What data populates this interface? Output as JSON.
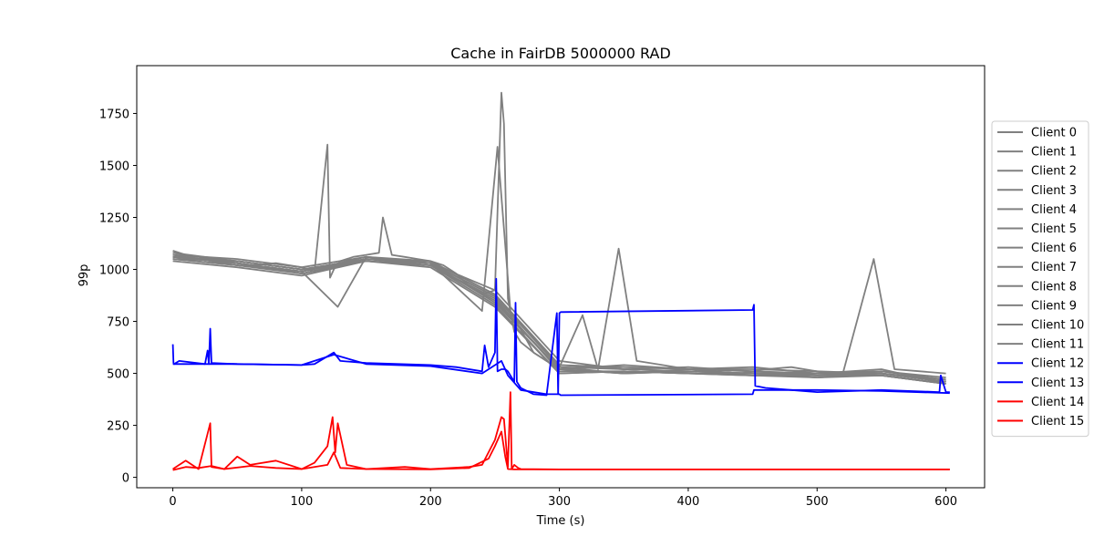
{
  "chart_data": {
    "type": "line",
    "title": "Cache in  FairDB 5000000 RAD",
    "xlabel": "Time (s)",
    "ylabel": "99p",
    "xlim": [
      -28,
      630
    ],
    "ylim": [
      -50,
      1980
    ],
    "xticks": [
      0,
      100,
      200,
      300,
      400,
      500,
      600
    ],
    "yticks": [
      0,
      250,
      500,
      750,
      1000,
      1250,
      1500,
      1750
    ],
    "grid": false,
    "legend_position": "center-right-outside",
    "colors": {
      "grey": "#808080",
      "blue": "#0000ff",
      "red": "#ff0000"
    },
    "series": [
      {
        "name": "Client 0",
        "color": "#808080",
        "x": [
          0,
          20,
          40,
          60,
          80,
          100,
          110,
          120,
          122,
          125,
          130,
          140,
          150,
          160,
          163,
          170,
          180,
          190,
          200,
          210,
          220,
          230,
          240,
          250,
          255,
          257,
          260,
          265,
          270,
          280,
          290,
          300,
          318,
          330,
          346,
          360,
          380,
          400,
          420,
          440,
          460,
          480,
          500,
          520,
          544,
          560,
          580,
          600
        ],
        "y": [
          1090,
          1050,
          1040,
          1020,
          1030,
          1010,
          990,
          1600,
          960,
          1000,
          1040,
          1060,
          1070,
          1080,
          1250,
          1070,
          1060,
          1050,
          1040,
          1020,
          980,
          920,
          880,
          900,
          1850,
          1700,
          860,
          700,
          650,
          600,
          560,
          530,
          780,
          520,
          1100,
          560,
          540,
          520,
          510,
          500,
          520,
          530,
          510,
          500,
          1050,
          520,
          510,
          500
        ]
      },
      {
        "name": "Client 1",
        "color": "#808080",
        "x": [
          0,
          50,
          100,
          128,
          150,
          200,
          240,
          252,
          262,
          280,
          300,
          350,
          400,
          450,
          500,
          550,
          600
        ],
        "y": [
          1060,
          1030,
          990,
          820,
          1060,
          1030,
          800,
          1590,
          800,
          600,
          520,
          540,
          520,
          530,
          500,
          520,
          450
        ]
      },
      {
        "name": "Client 2",
        "color": "#808080",
        "x": [
          0,
          50,
          100,
          150,
          200,
          250,
          300,
          350,
          400,
          450,
          500,
          550,
          600
        ],
        "y": [
          1080,
          1040,
          1000,
          1050,
          1030,
          900,
          560,
          520,
          530,
          510,
          500,
          510,
          480
        ]
      },
      {
        "name": "Client 3",
        "color": "#808080",
        "x": [
          0,
          50,
          100,
          150,
          200,
          250,
          300,
          350,
          400,
          450,
          500,
          550,
          600
        ],
        "y": [
          1070,
          1050,
          1010,
          1060,
          1040,
          880,
          540,
          530,
          520,
          520,
          510,
          500,
          470
        ]
      },
      {
        "name": "Client 4",
        "color": "#808080",
        "x": [
          0,
          50,
          100,
          150,
          200,
          250,
          300,
          350,
          400,
          450,
          500,
          550,
          600
        ],
        "y": [
          1050,
          1020,
          980,
          1050,
          1020,
          850,
          520,
          500,
          510,
          500,
          490,
          500,
          460
        ]
      },
      {
        "name": "Client 5",
        "color": "#808080",
        "x": [
          0,
          50,
          100,
          150,
          200,
          250,
          300,
          350,
          400,
          450,
          500,
          550,
          600
        ],
        "y": [
          1040,
          1010,
          970,
          1040,
          1010,
          820,
          500,
          510,
          500,
          490,
          480,
          490,
          450
        ]
      },
      {
        "name": "Client 6",
        "color": "#808080",
        "x": [
          0,
          50,
          100,
          150,
          200,
          250,
          300,
          350,
          400,
          450,
          500,
          550,
          600
        ],
        "y": [
          1060,
          1030,
          990,
          1050,
          1030,
          870,
          530,
          520,
          510,
          500,
          500,
          500,
          460
        ]
      },
      {
        "name": "Client 7",
        "color": "#808080",
        "x": [
          0,
          50,
          100,
          150,
          200,
          250,
          300,
          350,
          400,
          450,
          500,
          550,
          600
        ],
        "y": [
          1050,
          1040,
          1000,
          1040,
          1020,
          860,
          510,
          510,
          500,
          500,
          490,
          490,
          450
        ]
      },
      {
        "name": "Client 8",
        "color": "#808080",
        "x": [
          0,
          50,
          100,
          150,
          200,
          250,
          300,
          350,
          400,
          450,
          500,
          550,
          600
        ],
        "y": [
          1070,
          1020,
          990,
          1060,
          1030,
          840,
          520,
          500,
          520,
          510,
          490,
          500,
          460
        ]
      },
      {
        "name": "Client 9",
        "color": "#808080",
        "x": [
          0,
          50,
          100,
          150,
          200,
          250,
          300,
          350,
          400,
          450,
          500,
          550,
          600
        ],
        "y": [
          1060,
          1040,
          1000,
          1050,
          1040,
          880,
          540,
          520,
          510,
          500,
          500,
          510,
          470
        ]
      },
      {
        "name": "Client 10",
        "color": "#808080",
        "x": [
          0,
          50,
          100,
          150,
          200,
          250,
          300,
          350,
          400,
          450,
          500,
          550,
          600
        ],
        "y": [
          1080,
          1030,
          980,
          1040,
          1020,
          830,
          500,
          510,
          500,
          490,
          490,
          490,
          450
        ]
      },
      {
        "name": "Client 11",
        "color": "#808080",
        "x": [
          0,
          50,
          100,
          150,
          200,
          250,
          300,
          350,
          400,
          450,
          500,
          550,
          600
        ],
        "y": [
          1050,
          1020,
          990,
          1050,
          1030,
          870,
          530,
          500,
          510,
          500,
          480,
          500,
          460
        ]
      },
      {
        "name": "Client 12",
        "color": "#0000ff",
        "x": [
          0,
          0.5,
          1,
          5,
          25,
          27,
          28,
          29,
          30,
          50,
          100,
          110,
          125,
          130,
          150,
          200,
          220,
          240,
          242,
          245,
          250,
          251,
          252,
          255,
          258,
          260,
          265,
          266,
          267,
          270,
          280,
          290,
          298,
          299,
          300,
          301,
          450,
          451,
          452,
          460,
          480,
          500,
          550,
          595,
          596,
          600,
          603
        ],
        "y": [
          640,
          550,
          545,
          560,
          545,
          610,
          545,
          715,
          550,
          545,
          540,
          545,
          600,
          560,
          550,
          540,
          530,
          510,
          635,
          530,
          600,
          955,
          510,
          520,
          520,
          510,
          460,
          840,
          460,
          430,
          400,
          395,
          790,
          400,
          790,
          795,
          805,
          830,
          440,
          430,
          420,
          410,
          420,
          410,
          490,
          410,
          410
        ]
      },
      {
        "name": "Client 13",
        "color": "#0000ff",
        "x": [
          0,
          50,
          100,
          125,
          150,
          200,
          240,
          255,
          260,
          270,
          290,
          300,
          301,
          450,
          451,
          500,
          550,
          603
        ],
        "y": [
          545,
          545,
          540,
          590,
          545,
          535,
          500,
          560,
          490,
          420,
          400,
          400,
          395,
          400,
          420,
          420,
          415,
          405
        ]
      },
      {
        "name": "Client 14",
        "color": "#ff0000",
        "x": [
          0,
          5,
          10,
          20,
          29,
          30,
          40,
          50,
          60,
          80,
          100,
          110,
          120,
          124,
          126,
          128,
          135,
          150,
          180,
          200,
          230,
          240,
          250,
          255,
          257,
          260,
          262,
          263,
          265,
          268,
          270,
          300,
          400,
          500,
          600,
          603
        ],
        "y": [
          40,
          60,
          80,
          40,
          260,
          50,
          40,
          100,
          60,
          80,
          40,
          70,
          150,
          290,
          120,
          260,
          60,
          40,
          50,
          40,
          50,
          60,
          180,
          290,
          280,
          50,
          410,
          40,
          60,
          45,
          40,
          38,
          38,
          38,
          38,
          38
        ]
      },
      {
        "name": "Client 15",
        "color": "#ff0000",
        "x": [
          0,
          10,
          20,
          30,
          40,
          60,
          80,
          100,
          120,
          125,
          130,
          150,
          200,
          230,
          245,
          250,
          255,
          258,
          260,
          265,
          270,
          300,
          400,
          500,
          603
        ],
        "y": [
          35,
          50,
          45,
          55,
          40,
          55,
          45,
          40,
          60,
          120,
          45,
          40,
          38,
          45,
          90,
          150,
          220,
          100,
          40,
          38,
          38,
          38,
          38,
          38,
          38
        ]
      }
    ]
  }
}
